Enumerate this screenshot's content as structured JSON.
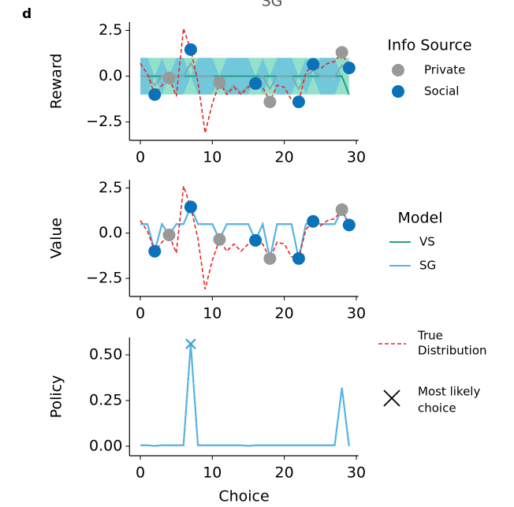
{
  "panel_label": "d",
  "chart_data": [
    {
      "type": "line",
      "title": "SG",
      "ylabel": "Reward",
      "xlim": [
        -1.5,
        30.3
      ],
      "ylim": [
        -3.5,
        2.95
      ],
      "xticks": [
        0,
        10,
        20,
        30
      ],
      "yticks": [
        2.5,
        {
          "value": 0,
          "label": "0.0"
        },
        {
          "value": -2.5,
          "label": "−2.5"
        }
      ],
      "x": [
        0,
        1,
        2,
        3,
        4,
        5,
        6,
        7,
        8,
        9,
        10,
        11,
        12,
        13,
        14,
        15,
        16,
        17,
        18,
        19,
        20,
        21,
        22,
        23,
        24,
        25,
        26,
        27,
        28,
        29
      ],
      "series": [
        {
          "color": "#2a9d7f",
          "band_color": "#3cc9a0",
          "values": [
            0,
            0,
            0,
            0,
            0,
            0,
            0,
            0,
            0,
            0,
            0,
            0,
            0,
            0,
            0,
            0,
            0,
            0,
            0,
            0,
            0,
            0,
            0,
            0,
            0,
            0,
            0,
            0,
            0,
            -1.0
          ],
          "upper": [
            1,
            1,
            1,
            1,
            1,
            1,
            1,
            1,
            1,
            1,
            1,
            1,
            1,
            1,
            1,
            1,
            1,
            1,
            1,
            1,
            1,
            1,
            1,
            1,
            1,
            1,
            1,
            1,
            1,
            1
          ],
          "lower": [
            -1,
            -1,
            -1,
            -1,
            -1,
            -1,
            -1,
            -1,
            -1,
            -1,
            -1,
            -1,
            -1,
            -1,
            -1,
            -1,
            -1,
            -1,
            -1,
            -1,
            -1,
            -1,
            -1,
            -1,
            -1,
            -1,
            -1,
            -1,
            -1,
            -1
          ]
        },
        {
          "color": "#7fa9b0",
          "band_color": "#56b4e9",
          "values": [
            0,
            0,
            -0.5,
            0,
            -0.05,
            0,
            0,
            0.7,
            0,
            0,
            0,
            -0.2,
            -0.9,
            -0.5,
            -0.9,
            -0.5,
            -0.2,
            0,
            -0.7,
            0,
            0,
            0,
            -0.7,
            0,
            0.3,
            0,
            0,
            0,
            0.6,
            0.2
          ],
          "upper": [
            1,
            1,
            0,
            1,
            0,
            1,
            1,
            0,
            1,
            1,
            1,
            0,
            1,
            1,
            1,
            1,
            0,
            1,
            0,
            1,
            1,
            1,
            0,
            1,
            0,
            1,
            1,
            1,
            0,
            0
          ],
          "lower": [
            -1,
            -1,
            0,
            -1,
            0,
            -1,
            -1,
            0,
            -1,
            -1,
            -1,
            0,
            -1,
            -1,
            -1,
            -1,
            0,
            -1,
            0,
            -1,
            -1,
            -1,
            0,
            -1,
            0,
            -1,
            -1,
            -1,
            0,
            0
          ]
        },
        {
          "color": "#e8251f",
          "dashed": true,
          "values": [
            0.7,
            0.1,
            -1.0,
            -0.5,
            -0.1,
            -1.1,
            2.6,
            1.45,
            -0.3,
            -3.1,
            -1.5,
            -0.35,
            -1.0,
            -0.6,
            -1.0,
            -0.6,
            -0.4,
            -0.6,
            -1.4,
            -0.5,
            -0.6,
            -1.3,
            -1.4,
            0.2,
            0.65,
            0.4,
            0.7,
            0.8,
            1.3,
            0.45
          ]
        }
      ],
      "legend_title": "Info Source",
      "points": [
        {
          "name": "Private",
          "color": "#999999",
          "x": [
            4,
            11,
            18,
            28
          ],
          "y": [
            -0.1,
            -0.35,
            -1.4,
            1.3
          ]
        },
        {
          "name": "Social",
          "color": "#0a72b8",
          "x": [
            2,
            7,
            16,
            22,
            24,
            29
          ],
          "y": [
            -1.0,
            1.45,
            -0.4,
            -1.4,
            0.65,
            0.45
          ]
        }
      ]
    },
    {
      "type": "line",
      "ylabel": "Value",
      "xlim": [
        -1.5,
        30.3
      ],
      "ylim": [
        -3.5,
        2.95
      ],
      "xticks": [
        0,
        10,
        20,
        30
      ],
      "yticks": [
        2.5,
        {
          "value": 0,
          "label": "0.0"
        },
        {
          "value": -2.5,
          "label": "−2.5"
        }
      ],
      "x": [
        0,
        1,
        2,
        3,
        4,
        5,
        6,
        7,
        8,
        9,
        10,
        11,
        12,
        13,
        14,
        15,
        16,
        17,
        18,
        19,
        20,
        21,
        22,
        23,
        24,
        25,
        26,
        27,
        28,
        29
      ],
      "series": [
        {
          "name": "VS",
          "color": "#2a9d7f",
          "values": [
            0.5,
            0.5,
            -1.0,
            0.5,
            -0.1,
            0.5,
            0.5,
            1.45,
            0.5,
            0.5,
            0.5,
            -0.35,
            0.5,
            0.5,
            0.5,
            0.5,
            -0.4,
            0.5,
            -1.4,
            0.5,
            0.5,
            0.5,
            -1.4,
            0.5,
            0.65,
            0.5,
            0.5,
            0.5,
            1.3,
            0.45
          ]
        },
        {
          "name": "SG",
          "color": "#56b4e9",
          "values": [
            0.5,
            0.5,
            -1.0,
            0.5,
            -0.1,
            0.5,
            0.5,
            1.45,
            0.5,
            0.5,
            0.5,
            -0.35,
            0.5,
            0.5,
            0.5,
            0.5,
            -0.4,
            0.5,
            -1.4,
            0.5,
            0.5,
            0.5,
            -1.4,
            0.5,
            0.65,
            0.5,
            0.5,
            0.5,
            1.3,
            0.45
          ]
        },
        {
          "color": "#e8251f",
          "dashed": true,
          "values": [
            0.7,
            0.1,
            -1.0,
            -0.5,
            -0.1,
            -1.1,
            2.6,
            1.45,
            -0.3,
            -3.1,
            -1.5,
            -0.35,
            -1.0,
            -0.6,
            -1.0,
            -0.6,
            -0.4,
            -0.6,
            -1.4,
            -0.5,
            -0.6,
            -1.3,
            -1.4,
            0.2,
            0.65,
            0.4,
            0.7,
            0.8,
            1.3,
            0.45
          ]
        }
      ],
      "legend_title": "Model",
      "points": [
        {
          "color": "#999999",
          "x": [
            4,
            11,
            18,
            28
          ],
          "y": [
            -0.1,
            -0.35,
            -1.4,
            1.3
          ]
        },
        {
          "color": "#0a72b8",
          "x": [
            2,
            7,
            16,
            22,
            24,
            29
          ],
          "y": [
            -1.0,
            1.45,
            -0.4,
            -1.4,
            0.65,
            0.45
          ]
        }
      ]
    },
    {
      "type": "line",
      "ylabel": "Policy",
      "xlabel": "Choice",
      "xlim": [
        -1.5,
        30.3
      ],
      "ylim": [
        -0.052,
        0.595
      ],
      "xticks": [
        0,
        10,
        20,
        30
      ],
      "yticks": [
        {
          "value": 0.5,
          "label": "0.50"
        },
        {
          "value": 0.25,
          "label": "0.25"
        },
        {
          "value": 0,
          "label": "0.00"
        }
      ],
      "x": [
        0,
        1,
        2,
        3,
        4,
        5,
        6,
        7,
        8,
        9,
        10,
        11,
        12,
        13,
        14,
        15,
        16,
        17,
        18,
        19,
        20,
        21,
        22,
        23,
        24,
        25,
        26,
        27,
        28,
        29
      ],
      "series": [
        {
          "color": "#2a9d7f",
          "values": [
            0.005,
            0.005,
            0.002,
            0.005,
            0.005,
            0.005,
            0.005,
            0.56,
            0.005,
            0.005,
            0.005,
            0.005,
            0.005,
            0.005,
            0.005,
            0.002,
            0.005,
            0.005,
            0.005,
            0.005,
            0.005,
            0.005,
            0.005,
            0.005,
            0.005,
            0.005,
            0.005,
            0.005,
            0.32,
            0
          ]
        },
        {
          "color": "#56b4e9",
          "values": [
            0.005,
            0.005,
            0.002,
            0.005,
            0.005,
            0.005,
            0.005,
            0.56,
            0.005,
            0.005,
            0.005,
            0.005,
            0.005,
            0.005,
            0.005,
            0.002,
            0.005,
            0.005,
            0.005,
            0.005,
            0.005,
            0.005,
            0.005,
            0.005,
            0.005,
            0.005,
            0.005,
            0.005,
            0.32,
            0
          ]
        }
      ],
      "marker": {
        "x": 7,
        "y": 0.56,
        "color": "#3a9fd6",
        "name_lines": [
          "Most likely",
          "choice"
        ]
      },
      "reference": {
        "color": "#e8251f",
        "name_lines": [
          "True",
          "Distribution"
        ]
      }
    }
  ]
}
